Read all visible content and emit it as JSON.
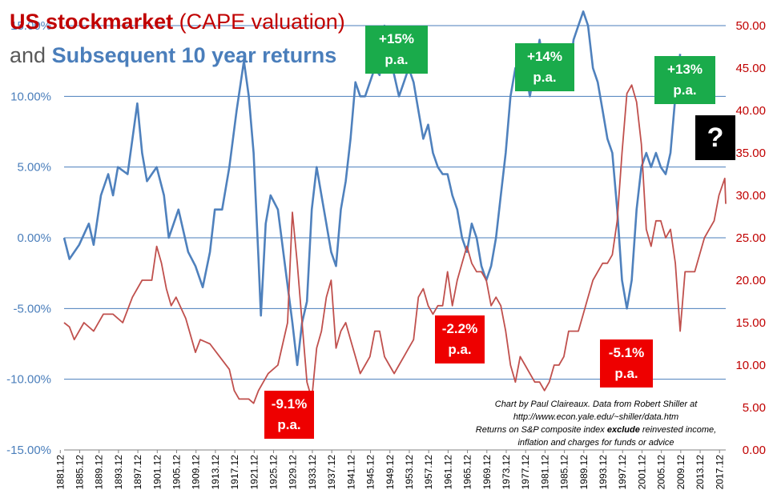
{
  "title": {
    "line1_bold": "US stockmarket",
    "line1_normal": "(CAPE valuation)",
    "line2_normal": "and",
    "line2_bold": "Subsequent 10 year returns"
  },
  "callouts": [
    {
      "line1": "+15%",
      "line2": "p.a.",
      "kind": "green"
    },
    {
      "line1": "+14%",
      "line2": "p.a.",
      "kind": "green"
    },
    {
      "line1": "+13%",
      "line2": "p.a.",
      "kind": "green"
    },
    {
      "line1": "-9.1%",
      "line2": "p.a.",
      "kind": "red"
    },
    {
      "line1": "-2.2%",
      "line2": "p.a.",
      "kind": "red"
    },
    {
      "line1": "-5.1%",
      "line2": "p.a.",
      "kind": "red"
    }
  ],
  "question_mark": "?",
  "credit": {
    "line1": "Chart by Paul Claireaux.  Data from Robert Shiller at",
    "line2": "http://www.econ.yale.edu/~shiller/data.htm",
    "line3_a": "Returns  on S&P composite  index ",
    "line3_b": "exclude",
    "line3_c": " reinvested income,",
    "line4": "inflation and charges for funds or advice"
  },
  "colors": {
    "cape": "#c0504d",
    "returns": "#4f81bd",
    "green_box": "#1aab4b",
    "red_box": "#ee0000",
    "gridline": "#4a7ebb",
    "left_axis_text": "#4a7ebb",
    "right_axis_text": "#c00000"
  },
  "chart_data": {
    "type": "line",
    "grid": true,
    "x_ticks": [
      "1881.12",
      "1885.12",
      "1889.12",
      "1893.12",
      "1897.12",
      "1901.12",
      "1905.12",
      "1909.12",
      "1913.12",
      "1917.12",
      "1921.12",
      "1925.12",
      "1929.12",
      "1933.12",
      "1937.12",
      "1941.12",
      "1945.12",
      "1949.12",
      "1953.12",
      "1957.12",
      "1961.12",
      "1965.12",
      "1969.12",
      "1973.12",
      "1977.12",
      "1981.12",
      "1985.12",
      "1989.12",
      "1993.12",
      "1997.12",
      "2001.12",
      "2005.12",
      "2009.12",
      "2013.12",
      "2017.12"
    ],
    "xlim": [
      1881.9,
      2018.4
    ],
    "left_axis": {
      "ylim": [
        -15,
        15
      ],
      "ticks": [
        "-15.00%",
        "-10.00%",
        "-5.00%",
        "0.00%",
        "5.00%",
        "10.00%",
        "15.00%"
      ]
    },
    "right_axis": {
      "ylim": [
        0,
        50
      ],
      "ticks": [
        "0.00",
        "5.00",
        "10.00",
        "15.00",
        "20.00",
        "25.00",
        "30.00",
        "35.00",
        "40.00",
        "45.00",
        "50.00"
      ]
    },
    "series": [
      {
        "axis": "left",
        "color": "#4f81bd",
        "points": [
          [
            1881.9,
            0
          ],
          [
            1883,
            -1.5
          ],
          [
            1885,
            -0.5
          ],
          [
            1887,
            1
          ],
          [
            1888,
            -0.5
          ],
          [
            1889.5,
            3
          ],
          [
            1891,
            4.5
          ],
          [
            1892,
            3
          ],
          [
            1893,
            5
          ],
          [
            1895,
            4.5
          ],
          [
            1897,
            9.5
          ],
          [
            1898,
            6
          ],
          [
            1899,
            4
          ],
          [
            1900,
            4.5
          ],
          [
            1901,
            5
          ],
          [
            1902.5,
            3
          ],
          [
            1903.5,
            0
          ],
          [
            1904.5,
            1
          ],
          [
            1905.5,
            2
          ],
          [
            1907.5,
            -1
          ],
          [
            1909,
            -2
          ],
          [
            1910.5,
            -3.5
          ],
          [
            1912,
            -1
          ],
          [
            1913,
            2
          ],
          [
            1914.5,
            2
          ],
          [
            1916,
            5
          ],
          [
            1917.5,
            9
          ],
          [
            1919,
            12.5
          ],
          [
            1920,
            10
          ],
          [
            1921,
            6
          ],
          [
            1922,
            -1.5
          ],
          [
            1922.5,
            -5.5
          ],
          [
            1923.5,
            1
          ],
          [
            1924.5,
            3
          ],
          [
            1926,
            2
          ],
          [
            1927.5,
            -2
          ],
          [
            1929,
            -6
          ],
          [
            1930,
            -9
          ],
          [
            1931,
            -6
          ],
          [
            1932,
            -4.5
          ],
          [
            1933,
            2
          ],
          [
            1934,
            5
          ],
          [
            1935,
            3
          ],
          [
            1936,
            1
          ],
          [
            1937,
            -1
          ],
          [
            1938,
            -2
          ],
          [
            1939,
            2
          ],
          [
            1940,
            4
          ],
          [
            1941,
            7
          ],
          [
            1942,
            11
          ],
          [
            1943,
            10
          ],
          [
            1944,
            10
          ],
          [
            1945,
            11
          ],
          [
            1946,
            12
          ],
          [
            1947,
            11.5
          ],
          [
            1948,
            15
          ],
          [
            1949,
            13
          ],
          [
            1950,
            11.5
          ],
          [
            1951,
            10
          ],
          [
            1952,
            11
          ],
          [
            1953,
            12
          ],
          [
            1954,
            11
          ],
          [
            1955,
            9
          ],
          [
            1956,
            7
          ],
          [
            1957,
            8
          ],
          [
            1958,
            6
          ],
          [
            1959,
            5
          ],
          [
            1960,
            4.5
          ],
          [
            1961,
            4.5
          ],
          [
            1962,
            3
          ],
          [
            1963,
            2
          ],
          [
            1964,
            0
          ],
          [
            1965,
            -1
          ],
          [
            1966,
            1
          ],
          [
            1967,
            0
          ],
          [
            1968,
            -2
          ],
          [
            1969,
            -3
          ],
          [
            1970,
            -2
          ],
          [
            1971,
            0
          ],
          [
            1972,
            3
          ],
          [
            1973,
            6
          ],
          [
            1974,
            10
          ],
          [
            1975,
            12
          ],
          [
            1976,
            11
          ],
          [
            1977,
            12
          ],
          [
            1978,
            10
          ],
          [
            1979,
            12
          ],
          [
            1980,
            14
          ],
          [
            1981,
            12
          ],
          [
            1982,
            11
          ],
          [
            1983,
            12
          ],
          [
            1984,
            13
          ],
          [
            1985,
            11
          ],
          [
            1986,
            11
          ],
          [
            1987,
            14
          ],
          [
            1988,
            15
          ],
          [
            1989,
            16
          ],
          [
            1990,
            15
          ],
          [
            1991,
            12
          ],
          [
            1992,
            11
          ],
          [
            1993,
            9
          ],
          [
            1994,
            7
          ],
          [
            1995,
            6
          ],
          [
            1996,
            2
          ],
          [
            1997,
            -3
          ],
          [
            1998,
            -5
          ],
          [
            1999,
            -3
          ],
          [
            2000,
            2
          ],
          [
            2001,
            5
          ],
          [
            2002,
            6
          ],
          [
            2003,
            5
          ],
          [
            2004,
            6
          ],
          [
            2005,
            5
          ],
          [
            2006,
            4.5
          ],
          [
            2007,
            6
          ],
          [
            2008,
            10
          ],
          [
            2009,
            13
          ]
        ]
      },
      {
        "axis": "right",
        "color": "#c0504d",
        "points": [
          [
            1881.9,
            15
          ],
          [
            1883,
            14.5
          ],
          [
            1884,
            13
          ],
          [
            1886,
            15
          ],
          [
            1888,
            14
          ],
          [
            1890,
            16
          ],
          [
            1892,
            16
          ],
          [
            1894,
            15
          ],
          [
            1896,
            18
          ],
          [
            1898,
            20
          ],
          [
            1900,
            20
          ],
          [
            1901,
            24
          ],
          [
            1902,
            22
          ],
          [
            1903,
            19
          ],
          [
            1904,
            17
          ],
          [
            1905,
            18
          ],
          [
            1907,
            15.5
          ],
          [
            1909,
            11.5
          ],
          [
            1910,
            13
          ],
          [
            1912,
            12.5
          ],
          [
            1914,
            11
          ],
          [
            1916,
            9.5
          ],
          [
            1917,
            7
          ],
          [
            1918,
            6
          ],
          [
            1920,
            6
          ],
          [
            1921,
            5.5
          ],
          [
            1922,
            7
          ],
          [
            1924,
            9
          ],
          [
            1926,
            10
          ],
          [
            1928,
            15
          ],
          [
            1929,
            28
          ],
          [
            1930,
            22
          ],
          [
            1931,
            15
          ],
          [
            1932,
            8
          ],
          [
            1933,
            6
          ],
          [
            1934,
            12
          ],
          [
            1935,
            14
          ],
          [
            1936,
            18
          ],
          [
            1937,
            20
          ],
          [
            1938,
            12
          ],
          [
            1939,
            14
          ],
          [
            1940,
            15
          ],
          [
            1941,
            13
          ],
          [
            1942,
            11
          ],
          [
            1943,
            9
          ],
          [
            1944,
            10
          ],
          [
            1945,
            11
          ],
          [
            1946,
            14
          ],
          [
            1947,
            14
          ],
          [
            1948,
            11
          ],
          [
            1949,
            10
          ],
          [
            1950,
            9
          ],
          [
            1951,
            10
          ],
          [
            1952,
            11
          ],
          [
            1953,
            12
          ],
          [
            1954,
            13
          ],
          [
            1955,
            18
          ],
          [
            1956,
            19
          ],
          [
            1957,
            17
          ],
          [
            1958,
            16
          ],
          [
            1959,
            17
          ],
          [
            1960,
            17
          ],
          [
            1961,
            21
          ],
          [
            1962,
            17
          ],
          [
            1963,
            20
          ],
          [
            1964,
            22
          ],
          [
            1965,
            24
          ],
          [
            1966,
            22
          ],
          [
            1967,
            21
          ],
          [
            1968,
            21
          ],
          [
            1969,
            20
          ],
          [
            1970,
            17
          ],
          [
            1971,
            18
          ],
          [
            1972,
            17
          ],
          [
            1973,
            14
          ],
          [
            1974,
            10
          ],
          [
            1975,
            8
          ],
          [
            1976,
            11
          ],
          [
            1977,
            10
          ],
          [
            1978,
            9
          ],
          [
            1979,
            8
          ],
          [
            1980,
            8
          ],
          [
            1981,
            7
          ],
          [
            1982,
            8
          ],
          [
            1983,
            10
          ],
          [
            1984,
            10
          ],
          [
            1985,
            11
          ],
          [
            1986,
            14
          ],
          [
            1987,
            14
          ],
          [
            1988,
            14
          ],
          [
            1989,
            16
          ],
          [
            1990,
            18
          ],
          [
            1991,
            20
          ],
          [
            1992,
            21
          ],
          [
            1993,
            22
          ],
          [
            1994,
            22
          ],
          [
            1995,
            23
          ],
          [
            1996,
            27
          ],
          [
            1997,
            35
          ],
          [
            1998,
            42
          ],
          [
            1999,
            43
          ],
          [
            2000,
            41
          ],
          [
            2001,
            36
          ],
          [
            2002,
            26
          ],
          [
            2003,
            24
          ],
          [
            2004,
            27
          ],
          [
            2005,
            27
          ],
          [
            2006,
            25
          ],
          [
            2007,
            26
          ],
          [
            2008,
            22
          ],
          [
            2009,
            14
          ],
          [
            2010,
            21
          ],
          [
            2011,
            21
          ],
          [
            2012,
            21
          ],
          [
            2013,
            23
          ],
          [
            2014,
            25
          ],
          [
            2015,
            26
          ],
          [
            2016,
            27
          ],
          [
            2017,
            30
          ],
          [
            2018.2,
            32
          ],
          [
            2018.4,
            29
          ]
        ]
      }
    ]
  }
}
